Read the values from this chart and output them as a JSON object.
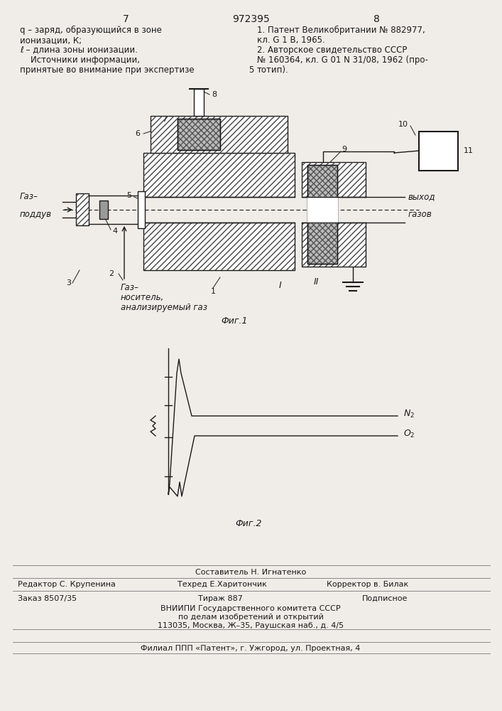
{
  "page_bg": "#f0ede8",
  "draw_color": "#1a1a1a",
  "hatch_color": "#333333",
  "page_num_left": "7",
  "page_num_center": "972395",
  "page_num_right": "8",
  "top_left_lines": [
    "q – заряд, образующийся в зоне",
    "ионизации, К;",
    "ℓ – длина зоны ионизации.",
    "    Источники информации,",
    "принятые во внимание при экспертизе"
  ],
  "top_right_lines": [
    "1. Патент Великобритании № 882977,",
    "кл. G 1 B, 1965.",
    "2. Авторское свидетельство СССР",
    "№ 160364, кл. G 01 N 31/08, 1962 (про-",
    "тотип)."
  ],
  "top_right_small": "5",
  "fig1_caption": "Фиг.1",
  "fig2_caption": "Фиг.2",
  "footer_compiler": "Составитель Н. Игнатенко",
  "footer_editor": "Редактор С. Крупенина",
  "footer_techred": "Техред Е.Харитончик",
  "footer_corrector": "Корректор в. Билак",
  "footer_zakaz": "Заказ 8507/35",
  "footer_tirazh": "Тираж 887",
  "footer_podpisnoe": "Подписное",
  "footer_vniipи": "ВНИИПИ Государственного комитета СССР",
  "footer_po_delam": "по делам изобретений и открытий",
  "footer_address": "113035, Москва, Ж–35, Раушская наб., д. 4/5",
  "footer_filial": "Филиал ППП «Патент», г. Ужгород, ул. Проектная, 4"
}
